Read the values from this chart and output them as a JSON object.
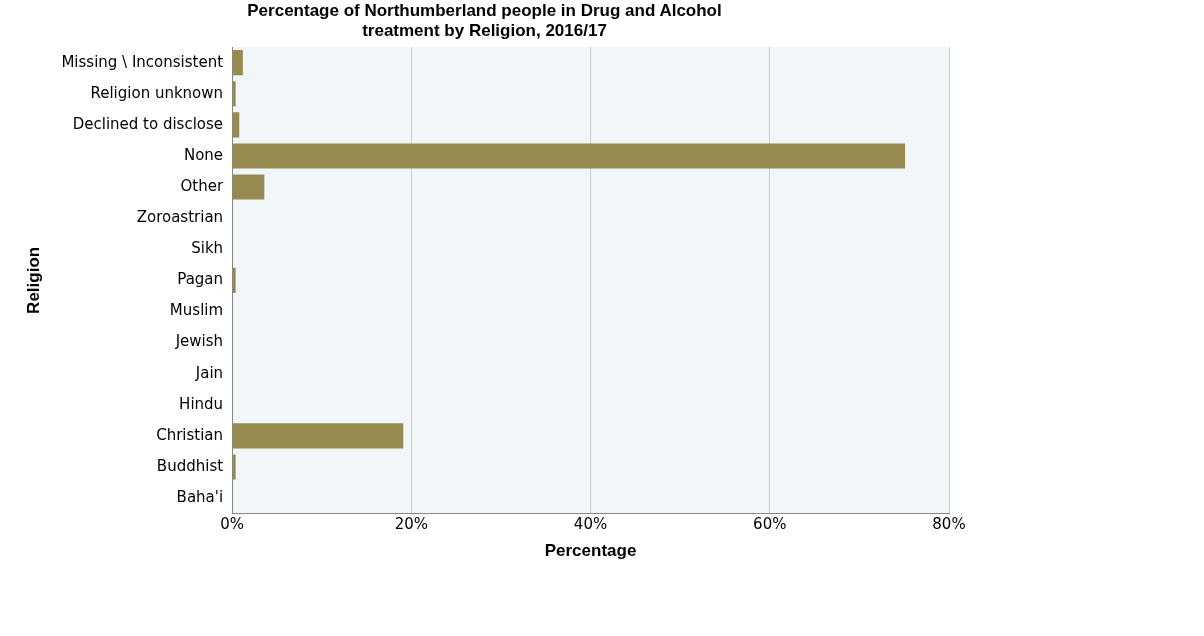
{
  "chart_data": {
    "type": "bar",
    "orientation": "horizontal",
    "title": "Percentage of Northumberland people in Drug and Alcohol\ntreatment by Religion, 2016/17",
    "xlabel": "Percentage",
    "ylabel": "Religion",
    "categories": [
      "Missing \\ Inconsistent",
      "Religion unknown",
      "Declined to disclose",
      "None",
      "Other",
      "Zoroastrian",
      "Sikh",
      "Pagan",
      "Muslim",
      "Jewish",
      "Jain",
      "Hindu",
      "Christian",
      "Buddhist",
      "Baha'i"
    ],
    "values": [
      1.2,
      0.4,
      0.8,
      75.1,
      3.6,
      0,
      0,
      0.4,
      0,
      0,
      0,
      0,
      19.1,
      0.4,
      0
    ],
    "color": "#968a50",
    "xlim": [
      0,
      80
    ],
    "xticks": [
      {
        "value": 0,
        "label": "0%"
      },
      {
        "value": 20,
        "label": "20%"
      },
      {
        "value": 40,
        "label": "40%"
      },
      {
        "value": 60,
        "label": "60%"
      },
      {
        "value": 80,
        "label": "80%"
      }
    ],
    "grid": "x",
    "legend": false
  }
}
